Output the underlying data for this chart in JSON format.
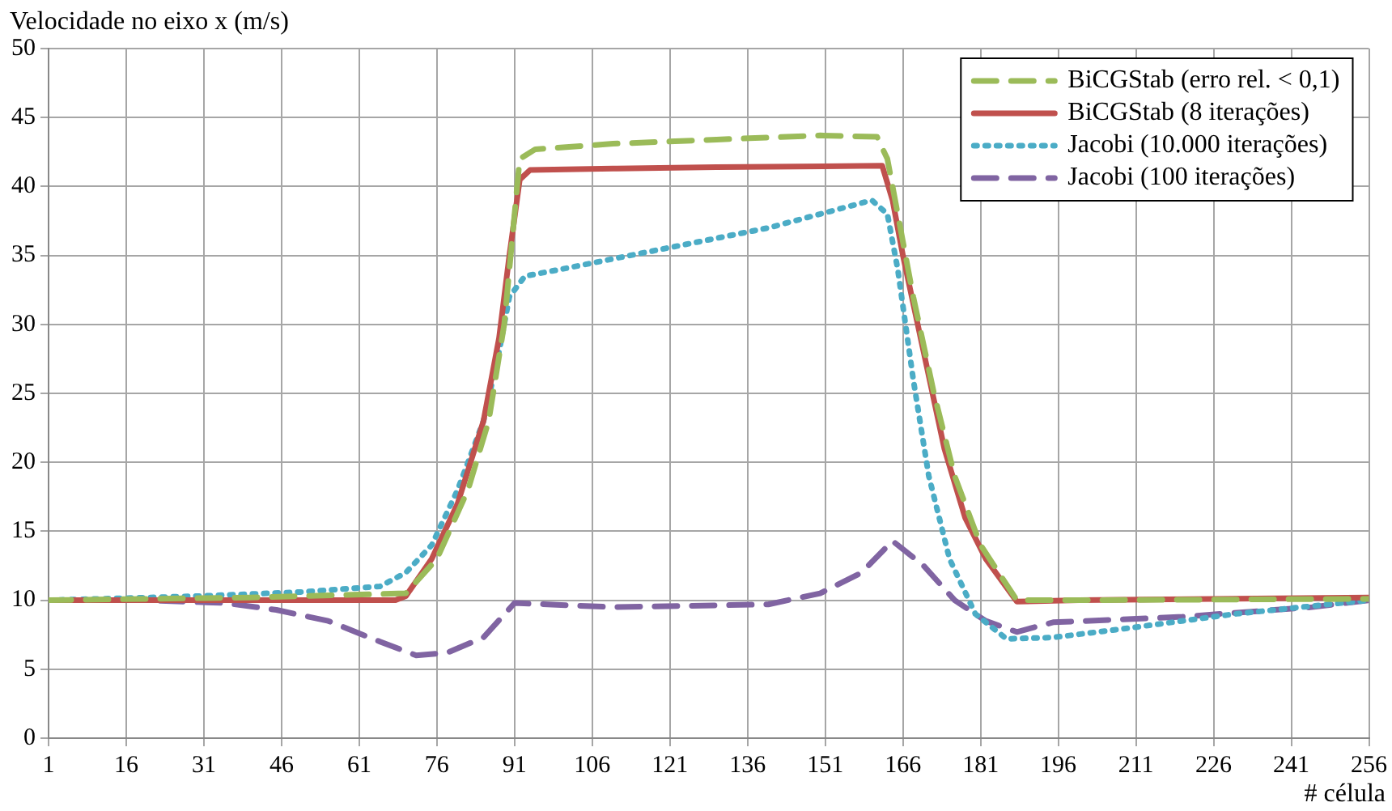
{
  "chart_data": {
    "type": "line",
    "xlabel": "# célula",
    "ylabel": "Velocidade no eixo x (m/s)",
    "xlim": [
      1,
      256
    ],
    "xticks": [
      1,
      16,
      31,
      46,
      61,
      76,
      91,
      106,
      121,
      136,
      151,
      166,
      181,
      196,
      211,
      226,
      241,
      256
    ],
    "ylim": [
      0,
      50
    ],
    "yticks": [
      0,
      5,
      10,
      15,
      20,
      25,
      30,
      35,
      40,
      45,
      50
    ],
    "grid": true,
    "legend": "top right",
    "marker": "none",
    "series": [
      {
        "name": "BiCGStab (erro rel. < 0,1)",
        "color": "#9bbb59",
        "line_style": "dashed",
        "x": [
          1,
          40,
          60,
          70,
          76,
          82,
          86,
          89,
          91,
          92,
          95,
          110,
          130,
          150,
          161,
          163,
          165,
          168,
          172,
          176,
          181,
          188,
          200,
          256
        ],
        "values": [
          10,
          10.2,
          10.4,
          10.5,
          13,
          18,
          23,
          30,
          38,
          42,
          42.7,
          43.1,
          43.4,
          43.7,
          43.6,
          42,
          38,
          32,
          25,
          19,
          14,
          10,
          10,
          10.1
        ]
      },
      {
        "name": "BiCGStab (8 iterações)",
        "color": "#c0504d",
        "line_style": "solid",
        "x": [
          1,
          68,
          70,
          75,
          80,
          85,
          88,
          90,
          92,
          94,
          110,
          130,
          162,
          164,
          166,
          170,
          174,
          178,
          182,
          188,
          200,
          256
        ],
        "values": [
          10,
          10,
          10.3,
          13,
          17,
          23,
          29,
          35,
          40.5,
          41.2,
          41.3,
          41.4,
          41.5,
          39,
          35,
          28,
          21,
          16,
          13,
          9.9,
          10,
          10.2
        ]
      },
      {
        "name": "Jacobi (10.000 iterações)",
        "color": "#4bacc6",
        "line_style": "dotted",
        "x": [
          1,
          30,
          50,
          65,
          70,
          75,
          80,
          85,
          88,
          90,
          93,
          100,
          120,
          140,
          160,
          163,
          165,
          168,
          171,
          175,
          180,
          186,
          195,
          210,
          230,
          256
        ],
        "values": [
          10,
          10.3,
          10.6,
          11,
          12,
          14,
          18,
          23,
          28,
          32,
          33.5,
          34,
          35.5,
          37,
          39,
          38,
          34,
          26,
          19,
          13,
          9,
          7.2,
          7.3,
          8,
          9,
          10
        ]
      },
      {
        "name": "Jacobi (100 iterações)",
        "color": "#8064a2",
        "line_style": "dashed",
        "x": [
          1,
          20,
          35,
          45,
          55,
          65,
          72,
          78,
          85,
          91,
          110,
          140,
          150,
          158,
          164,
          170,
          176,
          182,
          188,
          195,
          220,
          245,
          256
        ],
        "values": [
          10,
          10,
          9.8,
          9.3,
          8.5,
          7,
          6,
          6.2,
          7.3,
          9.8,
          9.5,
          9.7,
          10.5,
          12,
          14.3,
          12.5,
          10,
          8.5,
          7.7,
          8.4,
          8.8,
          9.5,
          10
        ]
      }
    ]
  }
}
